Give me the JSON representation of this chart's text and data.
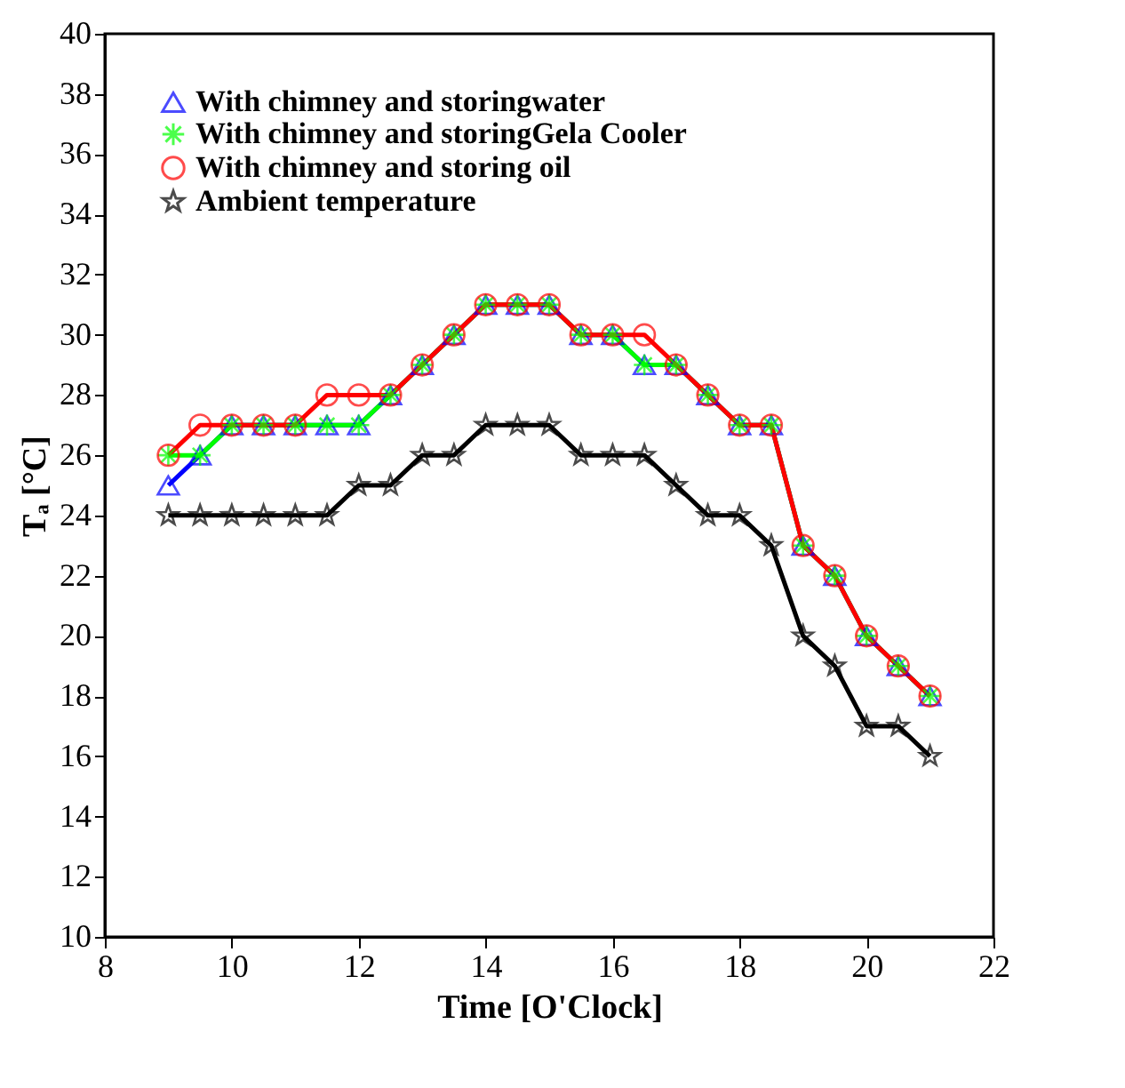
{
  "chart_data": {
    "type": "line",
    "xlabel": "Time [O'Clock]",
    "ylabel": "Tₐ [°C]",
    "x": [
      9,
      9.5,
      10,
      10.5,
      11,
      11.5,
      12,
      12.5,
      13,
      13.5,
      14,
      14.5,
      15,
      15.5,
      16,
      16.5,
      17,
      17.5,
      18,
      18.5,
      19,
      19.5,
      20,
      20.5,
      21
    ],
    "series": [
      {
        "name": "With chimney and storingwater",
        "color": "#0000ff",
        "marker": "triangle",
        "values": [
          25,
          26,
          27,
          27,
          27,
          27,
          27,
          28,
          29,
          30,
          31,
          31,
          31,
          30,
          30,
          29,
          29,
          28,
          27,
          27,
          23,
          22,
          20,
          19,
          18
        ]
      },
      {
        "name": "With chimney and storingGela Cooler",
        "color": "#00ff00",
        "marker": "cross",
        "values": [
          26,
          26,
          27,
          27,
          27,
          27,
          27,
          28,
          29,
          30,
          31,
          31,
          31,
          30,
          30,
          29,
          29,
          28,
          27,
          27,
          23,
          22,
          20,
          19,
          18
        ]
      },
      {
        "name": "With chimney and storing oil",
        "color": "#ff0000",
        "marker": "circle",
        "values": [
          26,
          27,
          27,
          27,
          27,
          28,
          28,
          28,
          29,
          30,
          31,
          31,
          31,
          30,
          30,
          30,
          29,
          28,
          27,
          27,
          23,
          22,
          20,
          19,
          18
        ]
      },
      {
        "name": "Ambient temperature",
        "color": "#000000",
        "marker": "star",
        "values": [
          24,
          24,
          24,
          24,
          24,
          24,
          25,
          25,
          26,
          26,
          27,
          27,
          27,
          26,
          26,
          26,
          25,
          24,
          24,
          23,
          20,
          19,
          17,
          17,
          16
        ]
      }
    ],
    "xlim": [
      8,
      22
    ],
    "xticks": [
      8,
      10,
      12,
      14,
      16,
      18,
      20,
      22
    ],
    "ylim": [
      10,
      40
    ],
    "yticks": [
      10,
      12,
      14,
      16,
      18,
      20,
      22,
      24,
      26,
      28,
      30,
      32,
      34,
      36,
      38,
      40
    ],
    "grid": false,
    "legend": "top left"
  }
}
